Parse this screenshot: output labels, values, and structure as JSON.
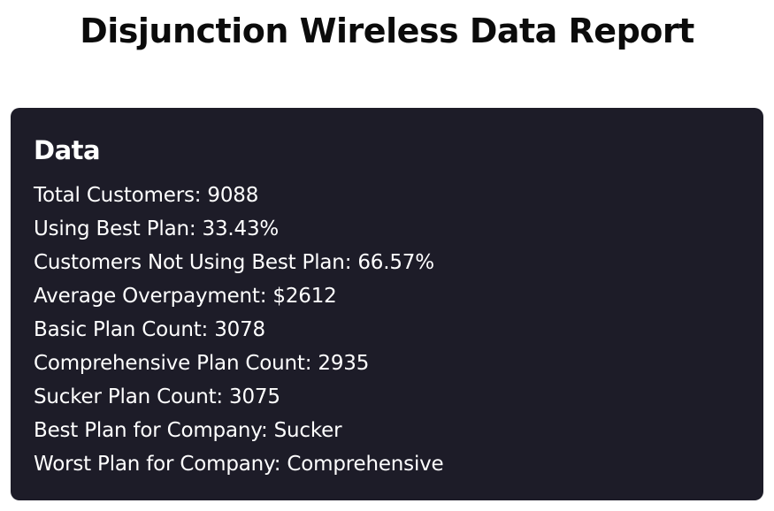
{
  "page": {
    "title": "Disjunction Wireless Data Report"
  },
  "card": {
    "heading": "Data",
    "stats": [
      "Total Customers: 9088",
      "Using Best Plan: 33.43%",
      "Customers Not Using Best Plan: 66.57%",
      "Average Overpayment: $2612",
      "Basic Plan Count: 3078",
      "Comprehensive Plan Count: 2935",
      "Sucker Plan Count: 3075",
      "Best Plan for Company: Sucker",
      "Worst Plan for Company: Comprehensive"
    ]
  },
  "colors": {
    "card_background": "#1d1c28",
    "card_text": "#ffffff",
    "page_text": "#0b0b0b"
  }
}
